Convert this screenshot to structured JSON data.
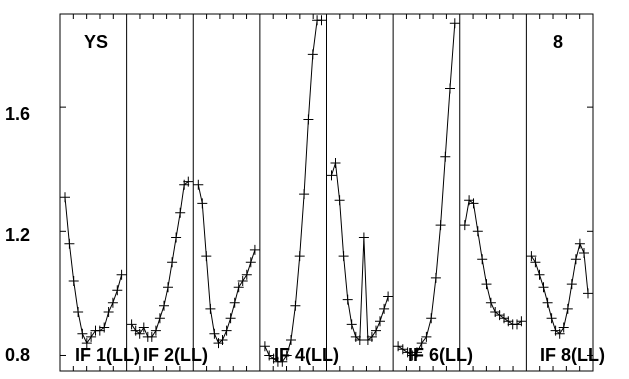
{
  "chart_data": {
    "type": "line",
    "corner_labels": {
      "left": "YS",
      "right": "8"
    },
    "y_ticks": [
      {
        "label": "0.8",
        "value": 0.8
      },
      {
        "label": "1.2",
        "value": 1.2
      },
      {
        "label": "1.6",
        "value": 1.6
      }
    ],
    "ylim": [
      0.75,
      1.9
    ],
    "panel_labels": [
      "IF 1(LL)",
      "IF 2(LL)",
      "IF 4(LL)",
      "IF 6(LL)",
      "IF 8(LL)"
    ],
    "series": [
      {
        "values": [
          1.31,
          1.16,
          1.04,
          0.94,
          0.87,
          0.84,
          0.86,
          0.88,
          0.88,
          0.89,
          0.94,
          0.97,
          1.01,
          1.06
        ]
      },
      {
        "values": [
          0.9,
          0.88,
          0.87,
          0.89,
          0.86,
          0.86,
          0.88,
          0.92,
          0.96,
          1.02,
          1.1,
          1.18,
          1.26,
          1.35,
          1.36
        ]
      },
      {
        "values": [
          1.35,
          1.29,
          1.12,
          0.95,
          0.87,
          0.84,
          0.85,
          0.88,
          0.92,
          0.97,
          1.02,
          1.04,
          1.06,
          1.1,
          1.14
        ]
      },
      {
        "values": [
          0.83,
          0.8,
          0.79,
          0.78,
          0.78,
          0.8,
          0.85,
          0.96,
          1.12,
          1.32,
          1.56,
          1.77,
          1.88,
          1.88
        ]
      },
      {
        "values": [
          1.38,
          1.42,
          1.3,
          1.12,
          0.98,
          0.9,
          0.86,
          0.85,
          1.18,
          0.85,
          0.86,
          0.88,
          0.91,
          0.95,
          0.99
        ]
      },
      {
        "values": [
          0.83,
          0.82,
          0.81,
          0.8,
          0.81,
          0.84,
          0.86,
          0.92,
          1.05,
          1.22,
          1.44,
          1.66,
          1.87
        ]
      },
      {
        "values": [
          1.22,
          1.3,
          1.29,
          1.2,
          1.11,
          1.03,
          0.97,
          0.94,
          0.93,
          0.92,
          0.91,
          0.9,
          0.9,
          0.91
        ]
      },
      {
        "values": [
          1.12,
          1.1,
          1.06,
          1.02,
          0.97,
          0.92,
          0.88,
          0.87,
          0.89,
          0.95,
          1.03,
          1.11,
          1.16,
          1.13,
          1.0
        ]
      }
    ],
    "grid": false
  }
}
